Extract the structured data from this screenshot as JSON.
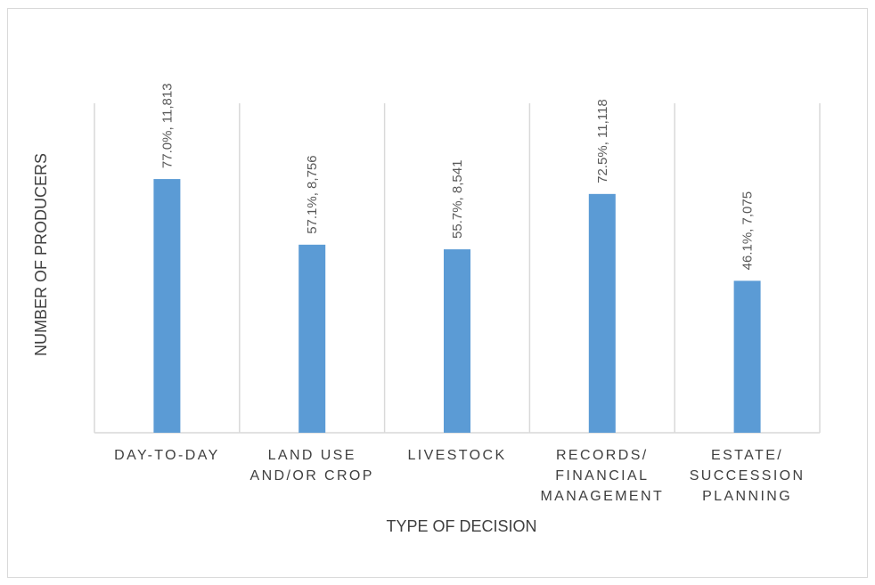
{
  "chart_data": {
    "type": "bar",
    "title": "",
    "xlabel": "TYPE OF DECISION",
    "ylabel": "NUMBER OF PRODUCERS",
    "categories": [
      [
        "DAY-TO-DAY"
      ],
      [
        "LAND USE",
        "AND/OR CROP"
      ],
      [
        "LIVESTOCK"
      ],
      [
        "RECORDS/",
        "FINANCIAL",
        "MANAGEMENT"
      ],
      [
        "ESTATE/",
        "SUCCESSION",
        "PLANNING"
      ]
    ],
    "values": [
      11813,
      8756,
      8541,
      11118,
      7075
    ],
    "percents": [
      "77.0%",
      "57.1%",
      "55.7%",
      "72.5%",
      "46.1%"
    ],
    "data_labels": [
      "77.0%, 11,813",
      "57.1%, 8,756",
      "55.7%, 8,541",
      "72.5%, 11,118",
      "46.1%, 7,075"
    ],
    "ylim": [
      0,
      15340
    ],
    "grid": "vertical category separators",
    "legend": "none",
    "bar_color": "#5b9bd5"
  }
}
